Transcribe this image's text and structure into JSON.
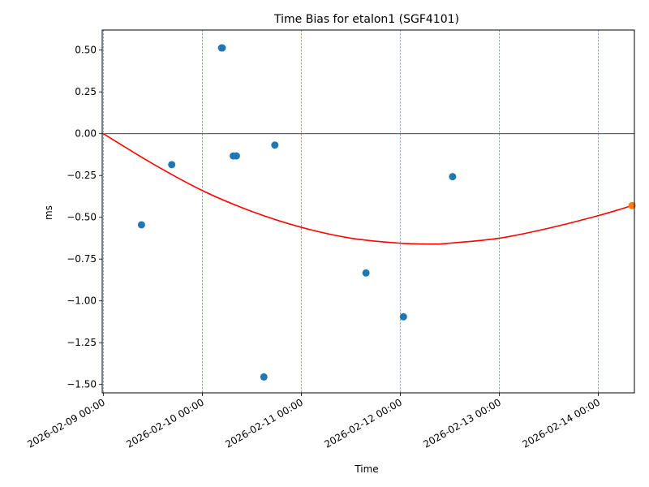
{
  "chart_data": {
    "type": "scatter",
    "title": "Time Bias for etalon1 (SGF4101)",
    "xlabel": "Time",
    "ylabel": "ms",
    "xlim": [
      "2026-02-08 23:44",
      "2026-02-14 08:44"
    ],
    "ylim": [
      -1.55,
      0.62
    ],
    "grid": "vertical dashed lines at date ticks",
    "legend": "none",
    "x_ticks": [
      "2026-02-09 00:00",
      "2026-02-10 00:00",
      "2026-02-11 00:00",
      "2026-02-12 00:00",
      "2026-02-13 00:00",
      "2026-02-14 00:00"
    ],
    "y_ticks": [
      0.5,
      0.25,
      0.0,
      -0.25,
      -0.5,
      -0.75,
      -1.0,
      -1.25,
      -1.5
    ],
    "y_tick_labels": [
      "0.50",
      "0.25",
      "0.00",
      "−0.25",
      "−0.50",
      "−0.75",
      "−1.00",
      "−1.25",
      "−1.50"
    ],
    "colors": {
      "points": "#1f77b4",
      "latest_point": "#ff7f0e",
      "fit_line": "#ff0000",
      "grid": "#1f77b4",
      "zero_line": "#000000"
    },
    "series": [
      {
        "points": [
          {
            "x": "2026-02-09 09:15",
            "y": -0.545
          },
          {
            "x": "2026-02-09 16:35",
            "y": -0.185
          },
          {
            "x": "2026-02-10 04:40",
            "y": 0.513
          },
          {
            "x": "2026-02-10 04:50",
            "y": 0.513
          },
          {
            "x": "2026-02-10 07:30",
            "y": -0.133
          },
          {
            "x": "2026-02-10 08:15",
            "y": -0.133
          },
          {
            "x": "2026-02-10 14:55",
            "y": -1.455
          },
          {
            "x": "2026-02-10 17:35",
            "y": -0.068
          },
          {
            "x": "2026-02-11 15:40",
            "y": -0.833
          },
          {
            "x": "2026-02-12 00:45",
            "y": -1.095
          },
          {
            "x": "2026-02-12 12:40",
            "y": -0.257
          }
        ]
      },
      {
        "points": [
          {
            "x": "2026-02-14 08:10",
            "y": -0.43
          }
        ]
      }
    ],
    "fit_curve": {
      "x": [
        "2026-02-09 00:00",
        "2026-02-09 12:00",
        "2026-02-10 00:00",
        "2026-02-10 12:00",
        "2026-02-11 00:00",
        "2026-02-11 12:00",
        "2026-02-12 00:00",
        "2026-02-12 08:00",
        "2026-02-12 12:00",
        "2026-02-13 00:00",
        "2026-02-13 12:00",
        "2026-02-14 00:00",
        "2026-02-14 08:10"
      ],
      "y": [
        0.0,
        -0.18,
        -0.34,
        -0.465,
        -0.56,
        -0.625,
        -0.655,
        -0.66,
        -0.655,
        -0.625,
        -0.565,
        -0.49,
        -0.43
      ]
    }
  }
}
